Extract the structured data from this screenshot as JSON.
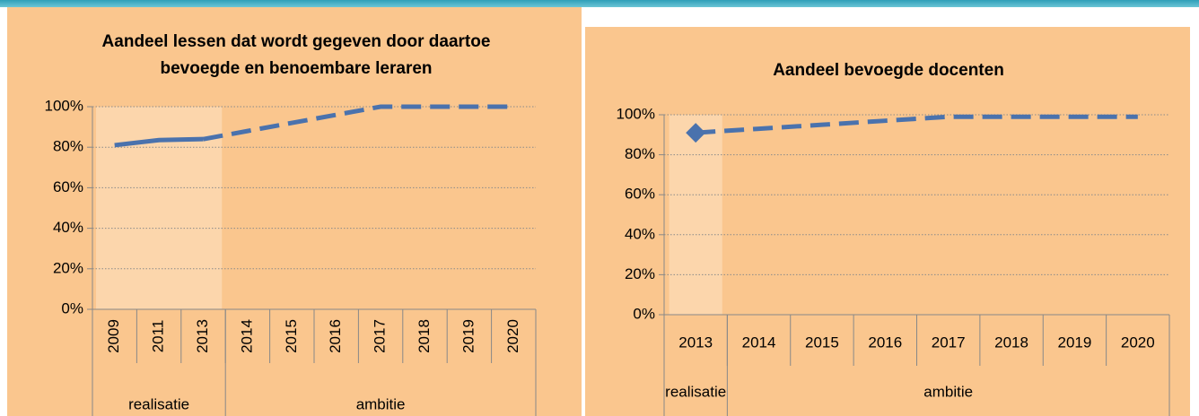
{
  "chart_data": [
    {
      "type": "line",
      "title": "Aandeel lessen dat wordt gegeven door daartoe bevoegde en benoembare leraren",
      "categories": [
        "2009",
        "2011",
        "2013",
        "2014",
        "2015",
        "2016",
        "2017",
        "2018",
        "2019",
        "2020"
      ],
      "groups": [
        {
          "label": "realisatie",
          "count": 3
        },
        {
          "label": "ambitie",
          "count": 7
        }
      ],
      "series": [
        {
          "color": "#4a72ad",
          "dashed": false,
          "values": [
            81,
            83.5,
            84,
            null,
            null,
            null,
            null,
            null,
            null,
            null
          ]
        },
        {
          "color": "#4a72ad",
          "dashed": true,
          "values": [
            null,
            null,
            84,
            88,
            92,
            96,
            100,
            100,
            100,
            100
          ]
        }
      ],
      "ylim": [
        0,
        100
      ],
      "yticks": [
        {
          "value": 0,
          "label": "0%"
        },
        {
          "value": 20,
          "label": "20%"
        },
        {
          "value": 40,
          "label": "40%"
        },
        {
          "value": 60,
          "label": "60%"
        },
        {
          "value": 80,
          "label": "80%"
        },
        {
          "value": 100,
          "label": "100%"
        }
      ],
      "grid": true,
      "rotated_labels": true
    },
    {
      "type": "line",
      "title": "Aandeel bevoegde docenten",
      "categories": [
        "2013",
        "2014",
        "2015",
        "2016",
        "2017",
        "2018",
        "2019",
        "2020"
      ],
      "groups": [
        {
          "label": "realisatie",
          "count": 1
        },
        {
          "label": "ambitie",
          "count": 7
        }
      ],
      "series": [
        {
          "color": "#4a72ad",
          "dashed": true,
          "marker": "diamond",
          "values": [
            91,
            93,
            95,
            97,
            99,
            99,
            99,
            99
          ]
        }
      ],
      "ylim": [
        0,
        100
      ],
      "yticks": [
        {
          "value": 0,
          "label": "0%"
        },
        {
          "value": 20,
          "label": "20%"
        },
        {
          "value": 40,
          "label": "40%"
        },
        {
          "value": 60,
          "label": "60%"
        },
        {
          "value": 80,
          "label": "80%"
        },
        {
          "value": 100,
          "label": "100%"
        }
      ],
      "grid": true,
      "rotated_labels": false
    }
  ]
}
